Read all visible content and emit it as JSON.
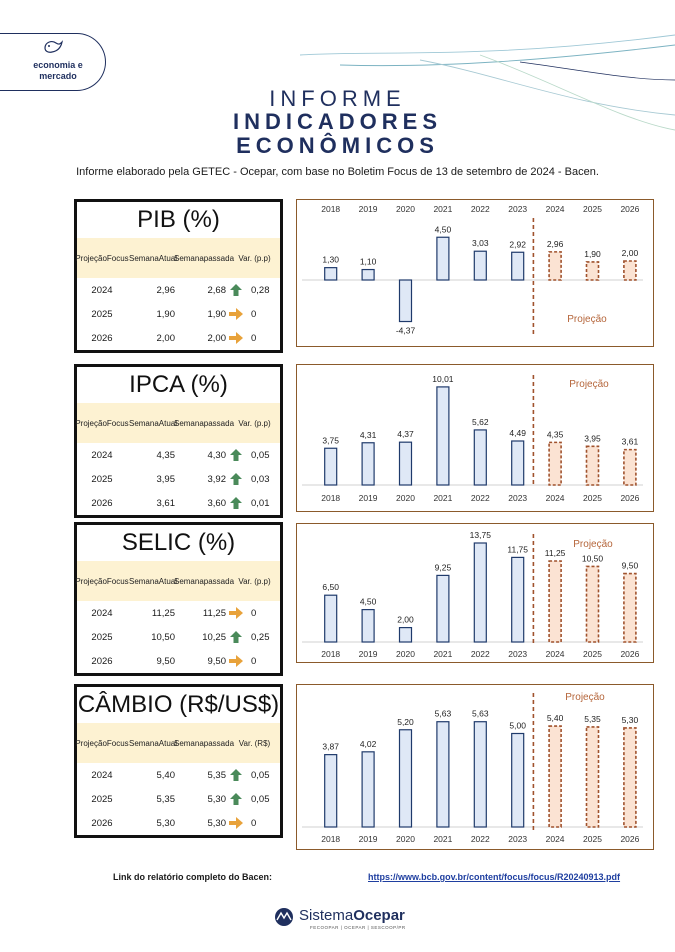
{
  "header": {
    "badge_text_1": "economia e",
    "badge_text_2": "mercado",
    "title_line1": "INFORME",
    "title_line2": "INDICADORES",
    "title_line3": "ECONÔMICOS",
    "subtitle": "Informe elaborado pela GETEC - Ocepar, com base no Boletim Focus de 13 de setembro de 2024 - Bacen."
  },
  "table_headers": {
    "col1": [
      "Projeção",
      "Focus"
    ],
    "col2": [
      "Semana",
      "Atual"
    ],
    "col3": [
      "Semana",
      "passada"
    ]
  },
  "colors": {
    "up": "#4a8a5a",
    "flat": "#e8a23a",
    "hist_fill": "#dfe8f6",
    "hist_stroke": "#1f3a6b",
    "proj_fill": "#fbe3d3",
    "proj_stroke": "#a0522d"
  },
  "tables": [
    {
      "title": "PIB (%)",
      "var_label": "Var. (p.p)",
      "rows": [
        {
          "year": "2024",
          "atual": "2,96",
          "passada": "2,68",
          "icon": "up-arrow-icon",
          "var": "0,28"
        },
        {
          "year": "2025",
          "atual": "1,90",
          "passada": "1,90",
          "icon": "right-arrow-icon",
          "var": "0"
        },
        {
          "year": "2026",
          "atual": "2,00",
          "passada": "2,00",
          "icon": "right-arrow-icon",
          "var": "0"
        }
      ]
    },
    {
      "title": "IPCA (%)",
      "var_label": "Var. (p.p)",
      "rows": [
        {
          "year": "2024",
          "atual": "4,35",
          "passada": "4,30",
          "icon": "up-arrow-icon",
          "var": "0,05"
        },
        {
          "year": "2025",
          "atual": "3,95",
          "passada": "3,92",
          "icon": "up-arrow-icon",
          "var": "0,03"
        },
        {
          "year": "2026",
          "atual": "3,61",
          "passada": "3,60",
          "icon": "up-arrow-icon",
          "var": "0,01"
        }
      ]
    },
    {
      "title": "SELIC (%)",
      "var_label": "Var. (p.p)",
      "rows": [
        {
          "year": "2024",
          "atual": "11,25",
          "passada": "11,25",
          "icon": "right-arrow-icon",
          "var": "0"
        },
        {
          "year": "2025",
          "atual": "10,50",
          "passada": "10,25",
          "icon": "up-arrow-icon",
          "var": "0,25"
        },
        {
          "year": "2026",
          "atual": "9,50",
          "passada": "9,50",
          "icon": "right-arrow-icon",
          "var": "0"
        }
      ]
    },
    {
      "title": "CÂMBIO (R$/US$)",
      "var_label": "Var. (R$)",
      "rows": [
        {
          "year": "2024",
          "atual": "5,40",
          "passada": "5,35",
          "icon": "up-arrow-icon",
          "var": "0,05"
        },
        {
          "year": "2025",
          "atual": "5,35",
          "passada": "5,30",
          "icon": "up-arrow-icon",
          "var": "0,05"
        },
        {
          "year": "2026",
          "atual": "5,30",
          "passada": "5,30",
          "icon": "right-arrow-icon",
          "var": "0"
        }
      ]
    }
  ],
  "chart_data": [
    {
      "type": "bar",
      "categories": [
        "2018",
        "2019",
        "2020",
        "2021",
        "2022",
        "2023",
        "2024",
        "2025",
        "2026"
      ],
      "values": [
        1.3,
        1.1,
        -4.37,
        4.5,
        3.03,
        2.92,
        2.96,
        1.9,
        2.0
      ],
      "labels": [
        "1,30",
        "1,10",
        "-4,37",
        "4,50",
        "3,03",
        "2,92",
        "2,96",
        "1,90",
        "2,00"
      ],
      "projection_from": "2024",
      "projection_label": "Projeção",
      "axis_position": "top",
      "ylim": [
        -5,
        6
      ]
    },
    {
      "type": "bar",
      "categories": [
        "2018",
        "2019",
        "2020",
        "2021",
        "2022",
        "2023",
        "2024",
        "2025",
        "2026"
      ],
      "values": [
        3.75,
        4.31,
        4.37,
        10.01,
        5.62,
        4.49,
        4.35,
        3.95,
        3.61
      ],
      "labels": [
        "3,75",
        "4,31",
        "4,37",
        "10,01",
        "5,62",
        "4,49",
        "4,35",
        "3,95",
        "3,61"
      ],
      "projection_from": "2024",
      "projection_label": "Projeção",
      "axis_position": "bottom",
      "ylim": [
        0,
        11
      ]
    },
    {
      "type": "bar",
      "categories": [
        "2018",
        "2019",
        "2020",
        "2021",
        "2022",
        "2023",
        "2024",
        "2025",
        "2026"
      ],
      "values": [
        6.5,
        4.5,
        2.0,
        9.25,
        13.75,
        11.75,
        11.25,
        10.5,
        9.5
      ],
      "labels": [
        "6,50",
        "4,50",
        "2,00",
        "9,25",
        "13,75",
        "11,75",
        "11,25",
        "10,50",
        "9,50"
      ],
      "projection_from": "2024",
      "projection_label": "Projeção",
      "axis_position": "bottom",
      "ylim": [
        0,
        14
      ]
    },
    {
      "type": "bar",
      "categories": [
        "2018",
        "2019",
        "2020",
        "2021",
        "2022",
        "2023",
        "2024",
        "2025",
        "2026"
      ],
      "values": [
        3.87,
        4.02,
        5.2,
        5.63,
        5.63,
        5.0,
        5.4,
        5.35,
        5.3
      ],
      "labels": [
        "3,87",
        "4,02",
        "5,20",
        "5,63",
        "5,63",
        "5,00",
        "5,40",
        "5,35",
        "5,30"
      ],
      "projection_from": "2024",
      "projection_label": "Projeção",
      "axis_position": "bottom",
      "ylim": [
        0,
        6
      ]
    }
  ],
  "footer": {
    "link_label": "Link do relatório completo do Bacen:",
    "link_url": "https://www.bcb.gov.br/content/focus/focus/R20240913.pdf",
    "logo_prefix": "Sistema",
    "logo_bold": "Ocepar",
    "logo_sub": "FECOOPAR | OCEPAR | SESCOOP/PR"
  }
}
